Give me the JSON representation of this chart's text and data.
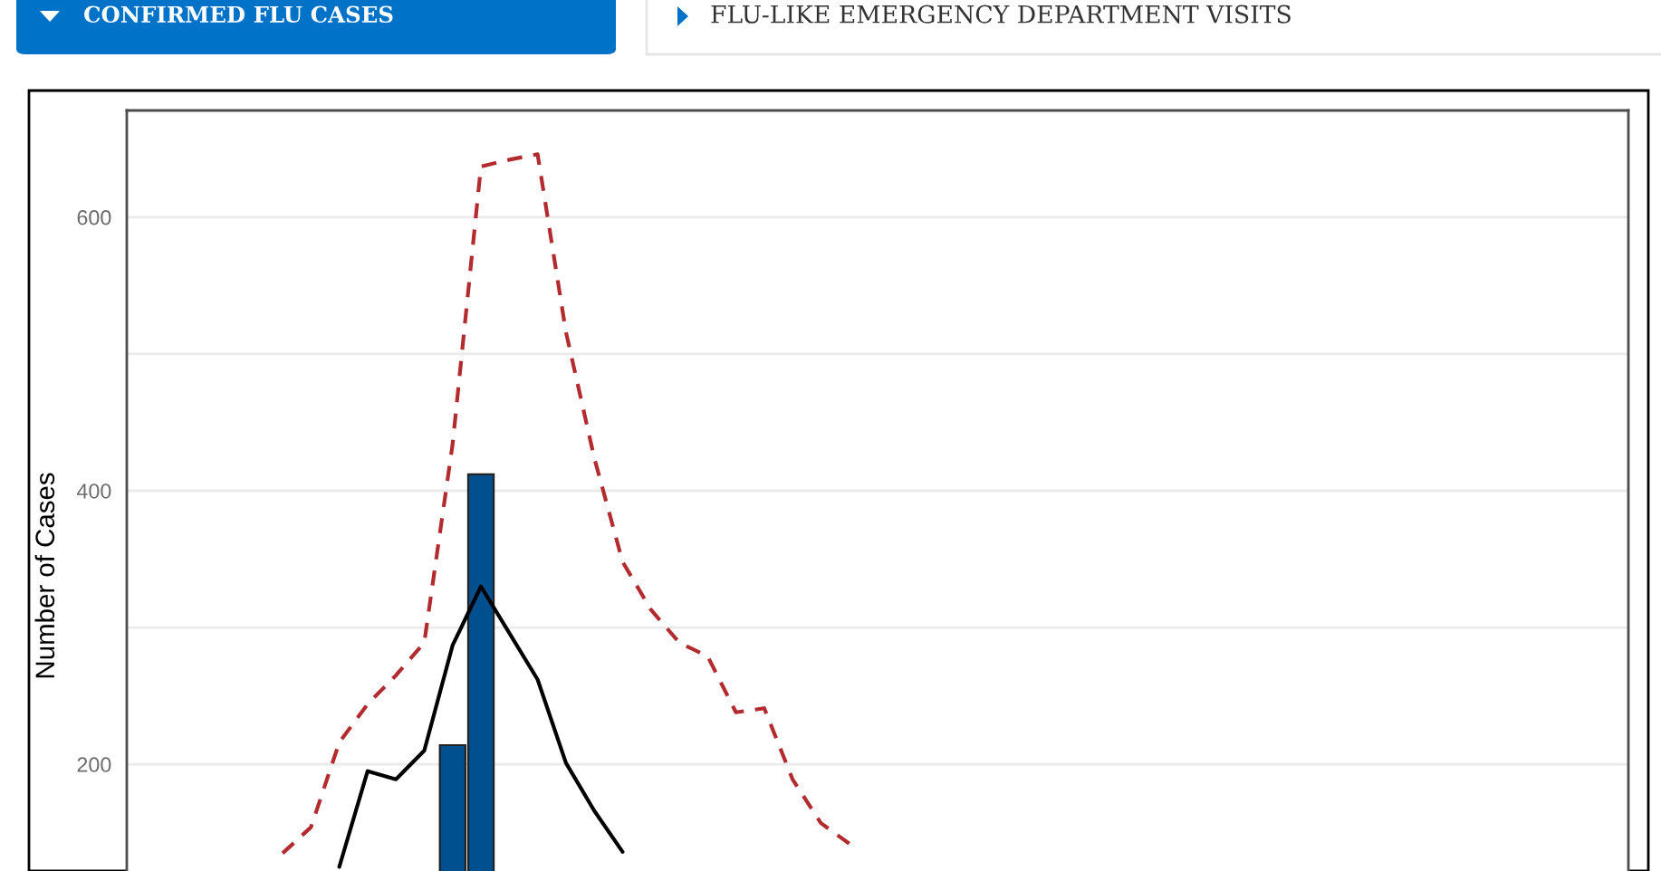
{
  "chart_data": {
    "type": "bar",
    "title": "CONFIRMED FLU CASES",
    "annotations": [
      "FLU-LIKE EMERGENCY DEPARTMENT VISITS"
    ],
    "ylabel": "Number of Cases",
    "categories": [
      null,
      null,
      null,
      null,
      null,
      null,
      null,
      null,
      null,
      null,
      null,
      null,
      null,
      null,
      null,
      null,
      null,
      null,
      null,
      null,
      null,
      null,
      null,
      null,
      null,
      null,
      null,
      null,
      null,
      null,
      null,
      null,
      null,
      null,
      null,
      null,
      null,
      null,
      null,
      null,
      null,
      null,
      null,
      null,
      null,
      null,
      null,
      null,
      null,
      null,
      null,
      null,
      null
    ],
    "series": [
      {
        "color": "#00508f",
        "values": [
          null,
          null,
          null,
          null,
          null,
          null,
          null,
          null,
          null,
          null,
          null,
          214,
          412,
          null,
          null,
          null,
          null,
          null,
          null,
          null,
          null,
          null,
          null,
          null,
          null,
          null,
          null,
          null,
          null,
          null,
          null,
          null,
          null,
          null,
          null,
          null,
          null,
          null,
          null,
          null,
          null,
          null,
          null,
          null,
          null,
          null,
          null,
          null,
          null,
          null,
          null,
          null,
          null
        ]
      },
      {
        "type": "line",
        "color": "#000000",
        "values": [
          null,
          null,
          null,
          null,
          null,
          null,
          null,
          125,
          195,
          189,
          210,
          287,
          330,
          296,
          262,
          201,
          166,
          136,
          null,
          null,
          null,
          null,
          null,
          null,
          null,
          null,
          null,
          null,
          null,
          null,
          null,
          null,
          null,
          null,
          null,
          null,
          null,
          null,
          null,
          null,
          null,
          null,
          null,
          null,
          null,
          null,
          null,
          null,
          null,
          null,
          null,
          null,
          null
        ]
      },
      {
        "type": "line",
        "color": "#b22b2f",
        "line_style": "dashed",
        "values": [
          null,
          null,
          null,
          null,
          null,
          135,
          154,
          216,
          244,
          265,
          289,
          434,
          637,
          642,
          646,
          516,
          424,
          348,
          313,
          289,
          279,
          238,
          241,
          189,
          157,
          142,
          null,
          null,
          null,
          null,
          null,
          null,
          null,
          null,
          null,
          null,
          null,
          null,
          null,
          null,
          null,
          null,
          null,
          null,
          null,
          null,
          null,
          null,
          null,
          null,
          null,
          null,
          null
        ]
      }
    ],
    "ylim": [
      122,
      678
    ],
    "yticks": [
      200,
      {
        "value": 300,
        "label": null
      },
      400,
      {
        "value": 500,
        "label": null
      },
      600
    ],
    "grid": "y"
  }
}
